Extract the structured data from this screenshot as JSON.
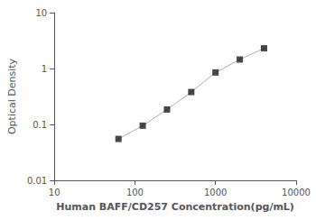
{
  "chart_data": {
    "type": "line",
    "xlabel": "Human BAFF/CD257 Concentration(pg/mL)",
    "ylabel": "Optical Density",
    "x": [
      62.5,
      125,
      250,
      500,
      1000,
      2000,
      4000
    ],
    "series": [
      {
        "type": "line",
        "color": "#b0b0b0",
        "values": [
          0.055,
          0.095,
          0.185,
          0.38,
          0.85,
          1.45,
          2.3
        ]
      },
      {
        "type": "scatter",
        "color": "#1a1a1a",
        "marker": "square",
        "values": [
          0.055,
          0.095,
          0.185,
          0.38,
          0.85,
          1.45,
          2.3
        ]
      }
    ],
    "log": true,
    "xlim": [
      10,
      10000
    ],
    "ylim": [
      0.01,
      10
    ],
    "xticks": [
      10,
      100,
      1000,
      10000
    ],
    "yticks": [
      0.01,
      0.1,
      1,
      10
    ],
    "grid": false
  }
}
